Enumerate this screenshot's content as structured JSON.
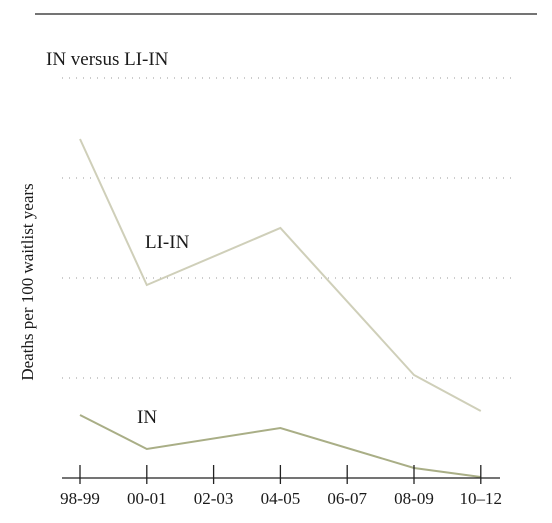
{
  "chart_data": {
    "type": "line",
    "title": "IN versus LI-IN",
    "xlabel": "",
    "ylabel": "Deaths per 100 waitlist years",
    "categories": [
      "98-99",
      "00-01",
      "02-03",
      "04-05",
      "06-07",
      "08-09",
      "10–12"
    ],
    "ylim": [
      0,
      40
    ],
    "grid": "horizontal dotted",
    "legend": "inline labels",
    "series": [
      {
        "name": "LI-IN",
        "color": "#cfcfb9",
        "values": [
          33.9,
          19.3,
          null,
          25.0,
          null,
          10.3,
          6.7
        ]
      },
      {
        "name": "IN",
        "color": "#a9ae86",
        "values": [
          6.3,
          2.9,
          null,
          5.0,
          null,
          1.0,
          0.1
        ]
      }
    ]
  }
}
